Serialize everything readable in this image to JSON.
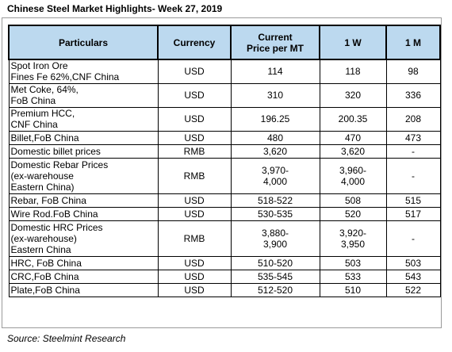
{
  "title": "Chinese Steel Market Highlights- Week 27, 2019",
  "headers": {
    "particulars": "Particulars",
    "currency": "Currency",
    "price_line1": "Current",
    "price_line2": "Price per MT",
    "w1": "1 W",
    "m1": "1 M"
  },
  "rows": [
    {
      "particulars": [
        "Spot Iron Ore",
        "Fines Fe 62%,CNF China"
      ],
      "currency": "USD",
      "price": [
        "114"
      ],
      "w1": [
        "118"
      ],
      "m1": "98"
    },
    {
      "particulars": [
        "Met Coke, 64%,",
        "FoB China"
      ],
      "currency": "USD",
      "price": [
        "310"
      ],
      "w1": [
        "320"
      ],
      "m1": "336"
    },
    {
      "particulars": [
        "Premium HCC,",
        "CNF China"
      ],
      "currency": "USD",
      "price": [
        "196.25"
      ],
      "w1": [
        "200.35"
      ],
      "m1": "208"
    },
    {
      "particulars": [
        "Billet,FoB China"
      ],
      "currency": "USD",
      "price": [
        "480"
      ],
      "w1": [
        "470"
      ],
      "m1": "473"
    },
    {
      "particulars": [
        "Domestic billet prices"
      ],
      "currency": "RMB",
      "price": [
        "3,620"
      ],
      "w1": [
        "3,620"
      ],
      "m1": "-"
    },
    {
      "particulars": [
        "Domestic Rebar Prices",
        "(ex-warehouse",
        "Eastern China)"
      ],
      "currency": "RMB",
      "price": [
        "3,970-",
        "4,000"
      ],
      "w1": [
        "3,960-",
        "4,000"
      ],
      "m1": "-"
    },
    {
      "particulars": [
        "Rebar, FoB China"
      ],
      "currency": "USD",
      "price": [
        "518-522"
      ],
      "w1": [
        "508"
      ],
      "m1": "515"
    },
    {
      "particulars": [
        "Wire Rod.FoB China"
      ],
      "currency": "USD",
      "price": [
        "530-535"
      ],
      "w1": [
        "520"
      ],
      "m1": "517"
    },
    {
      "particulars": [
        "Domestic HRC Prices",
        "(ex-warehouse)",
        "Eastern China"
      ],
      "currency": "RMB",
      "price": [
        "3,880-",
        "3,900"
      ],
      "w1": [
        "3,920-",
        "3,950"
      ],
      "m1": "-"
    },
    {
      "particulars": [
        "HRC, FoB China"
      ],
      "currency": "USD",
      "price": [
        "510-520"
      ],
      "w1": [
        "503"
      ],
      "m1": "503"
    },
    {
      "particulars": [
        "CRC,FoB China"
      ],
      "currency": "USD",
      "price": [
        "535-545"
      ],
      "w1": [
        "533"
      ],
      "m1": "543"
    },
    {
      "particulars": [
        "Plate,FoB China"
      ],
      "currency": "USD",
      "price": [
        "512-520"
      ],
      "w1": [
        "510"
      ],
      "m1": "522"
    }
  ],
  "source": "Source: Steelmint Research"
}
